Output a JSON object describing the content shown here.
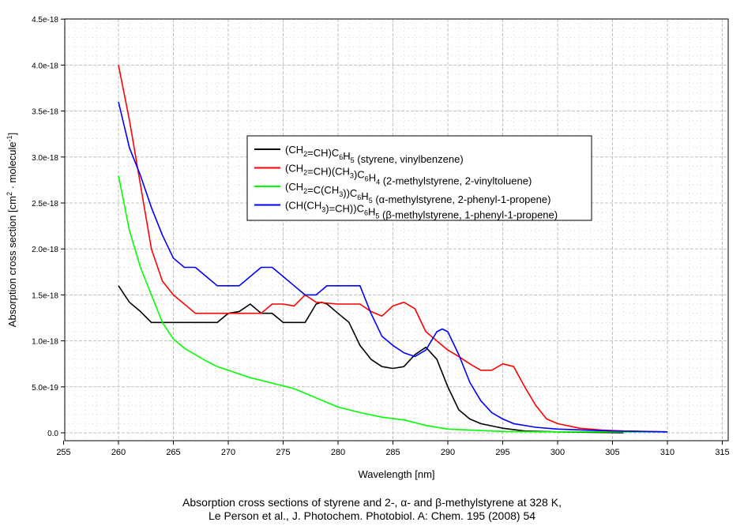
{
  "chart_data": {
    "type": "line",
    "xlabel": "Wavelength [nm]",
    "ylabel": [
      "Absorption cross section [cm",
      "2",
      " · molecule",
      "-1",
      "]"
    ],
    "xlim": [
      255,
      315
    ],
    "ylim": [
      0,
      4.5e-18
    ],
    "xticks": [
      255,
      260,
      265,
      270,
      275,
      280,
      285,
      290,
      295,
      300,
      305,
      310,
      315
    ],
    "yticks": [
      0,
      5e-19,
      1e-18,
      1.5e-18,
      2e-18,
      2.5e-18,
      3e-18,
      3.5e-18,
      4e-18,
      4.5e-18
    ],
    "ytick_labels": [
      "0.0",
      "5.0e-19",
      "1.0e-18",
      "1.5e-18",
      "2.0e-18",
      "2.5e-18",
      "3.0e-18",
      "3.5e-18",
      "4.0e-18",
      "4.5e-18"
    ],
    "grid": true,
    "legend_position": "center",
    "y_unit_scale": 1e-18,
    "series": [
      {
        "name": "(CH2=CH)C6H5 (styrene, vinylbenzene)",
        "color": "#000000",
        "label_segments": [
          [
            "(CH",
            0
          ],
          [
            "2",
            1
          ],
          [
            "=CH)C",
            0
          ],
          [
            "6",
            1
          ],
          [
            "H",
            0
          ],
          [
            "5",
            1
          ],
          [
            " (styrene, vinylbenzene)",
            0
          ]
        ],
        "x": [
          260,
          261,
          262,
          263,
          264,
          266,
          268,
          269,
          270,
          271,
          272,
          273,
          274,
          275,
          276,
          277,
          278,
          278.5,
          279,
          280,
          281,
          282,
          283,
          284,
          285,
          286,
          287,
          288,
          289,
          290,
          291,
          292,
          293,
          295,
          297,
          300,
          306
        ],
        "y": [
          1.6,
          1.42,
          1.32,
          1.2,
          1.2,
          1.2,
          1.2,
          1.2,
          1.3,
          1.32,
          1.4,
          1.3,
          1.3,
          1.2,
          1.2,
          1.2,
          1.4,
          1.42,
          1.4,
          1.3,
          1.2,
          0.95,
          0.8,
          0.72,
          0.7,
          0.72,
          0.85,
          0.93,
          0.8,
          0.5,
          0.25,
          0.15,
          0.1,
          0.05,
          0.02,
          0.01,
          0.0
        ]
      },
      {
        "name": "(CH2=CH)(CH3)C6H4 (2-methylstyrene, 2-vinyltoluene)",
        "color": "#ff0000",
        "label_segments": [
          [
            "(CH",
            0
          ],
          [
            "2",
            1
          ],
          [
            "=CH)(CH",
            0
          ],
          [
            "3",
            1
          ],
          [
            ")C",
            0
          ],
          [
            "6",
            1
          ],
          [
            "H",
            0
          ],
          [
            "4",
            1
          ],
          [
            " (2-methylstyrene, 2-vinyltoluene)",
            0
          ]
        ],
        "x": [
          260,
          261,
          262,
          263,
          264,
          265,
          266,
          267,
          268,
          270,
          272,
          273,
          274,
          275,
          276,
          277,
          278,
          280,
          281,
          282,
          283,
          284,
          285,
          286,
          287,
          288,
          289,
          290,
          291,
          292,
          293,
          294,
          295,
          296,
          297,
          298,
          299,
          300,
          302,
          304,
          306,
          310
        ],
        "y": [
          4.0,
          3.4,
          2.7,
          2.0,
          1.65,
          1.5,
          1.4,
          1.3,
          1.3,
          1.3,
          1.3,
          1.3,
          1.4,
          1.4,
          1.38,
          1.5,
          1.42,
          1.4,
          1.4,
          1.4,
          1.32,
          1.27,
          1.38,
          1.42,
          1.35,
          1.1,
          1.0,
          0.9,
          0.83,
          0.75,
          0.68,
          0.68,
          0.75,
          0.72,
          0.5,
          0.3,
          0.15,
          0.1,
          0.05,
          0.03,
          0.02,
          0.01
        ]
      },
      {
        "name": "(CH2=C(CH3))C6H5 (α-methylstyrene, 2-phenyl-1-propene)",
        "color": "#00ff00",
        "label_segments": [
          [
            "(CH",
            0
          ],
          [
            "2",
            1
          ],
          [
            "=C(CH",
            0
          ],
          [
            "3",
            1
          ],
          [
            "))C",
            0
          ],
          [
            "6",
            1
          ],
          [
            "H",
            0
          ],
          [
            "5",
            1
          ],
          [
            " (α-methylstyrene, 2-phenyl-1-propene)",
            0
          ]
        ],
        "x": [
          260,
          261,
          262,
          263,
          264,
          265,
          266,
          267,
          268,
          269,
          270,
          272,
          274,
          276,
          278,
          280,
          282,
          284,
          286,
          288,
          290,
          295,
          300,
          310
        ],
        "y": [
          2.8,
          2.2,
          1.8,
          1.5,
          1.2,
          1.02,
          0.92,
          0.85,
          0.78,
          0.72,
          0.68,
          0.6,
          0.54,
          0.48,
          0.38,
          0.28,
          0.22,
          0.17,
          0.14,
          0.08,
          0.04,
          0.015,
          0.01,
          0.01
        ]
      },
      {
        "name": "(CH(CH3)=CH))C6H5 (β-methylstyrene, 1-phenyl-1-propene)",
        "color": "#0000ff",
        "label_segments": [
          [
            "(CH(CH",
            0
          ],
          [
            "3",
            1
          ],
          [
            ")=CH))C",
            0
          ],
          [
            "6",
            1
          ],
          [
            "H",
            0
          ],
          [
            "5",
            1
          ],
          [
            " (β-methylstyrene, 1-phenyl-1-propene)",
            0
          ]
        ],
        "x": [
          260,
          261,
          262,
          263,
          264,
          265,
          266,
          267,
          268,
          269,
          270,
          271,
          272,
          273,
          274,
          275,
          276,
          277,
          278,
          279,
          280,
          281,
          282,
          283,
          284,
          285,
          286,
          287,
          288,
          289,
          289.5,
          290,
          291,
          292,
          293,
          294,
          295,
          296,
          298,
          300,
          305,
          310
        ],
        "y": [
          3.6,
          3.1,
          2.8,
          2.45,
          2.15,
          1.9,
          1.8,
          1.8,
          1.7,
          1.6,
          1.6,
          1.6,
          1.7,
          1.8,
          1.8,
          1.7,
          1.6,
          1.5,
          1.5,
          1.6,
          1.6,
          1.6,
          1.6,
          1.3,
          1.05,
          0.95,
          0.87,
          0.83,
          0.9,
          1.1,
          1.13,
          1.1,
          0.85,
          0.55,
          0.35,
          0.22,
          0.15,
          0.1,
          0.06,
          0.04,
          0.02,
          0.01
        ]
      }
    ]
  },
  "caption": {
    "line1": "Absorption cross sections of styrene and 2-, α- and β-methylstyrene at 328 K,",
    "line2": "Le Person et al., J. Photochem. Photobiol. A: Chem. 195 (2008) 54"
  }
}
